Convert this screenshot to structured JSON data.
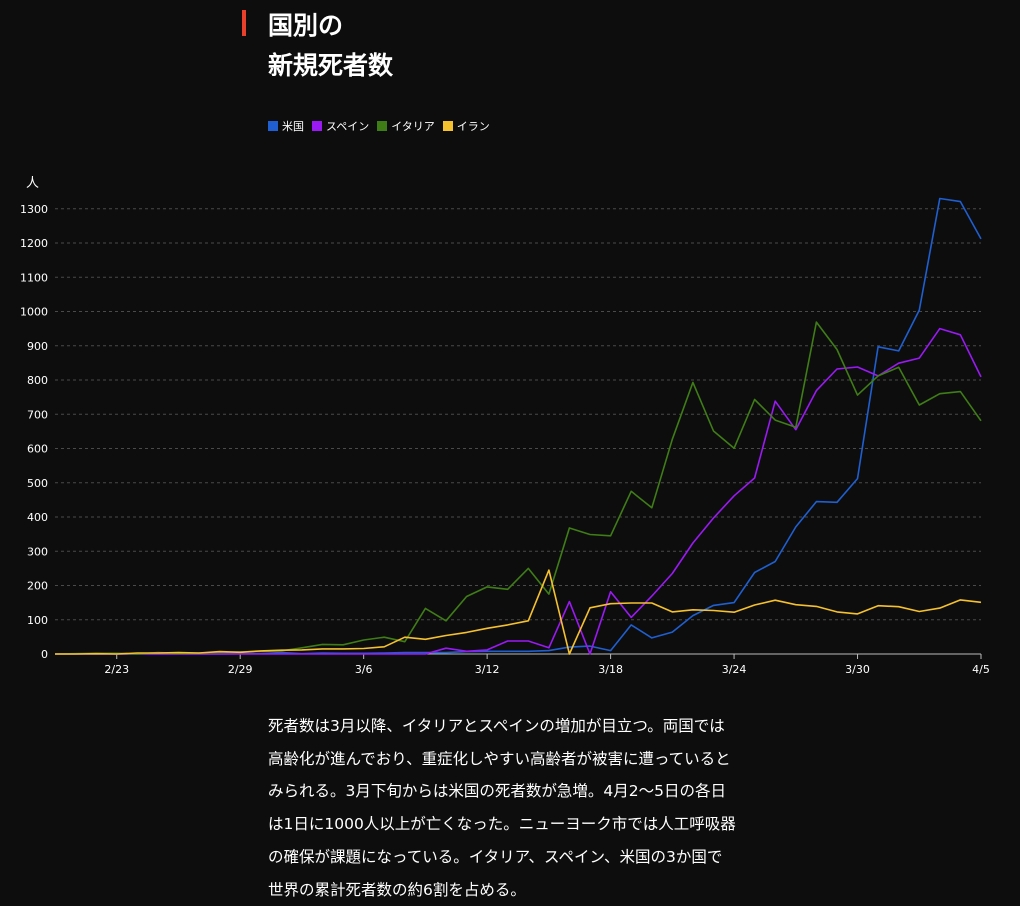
{
  "header": {
    "title_lines": [
      "国別の",
      "新規死者数"
    ]
  },
  "legend": [
    {
      "name": "米国",
      "color": "#1f5fd1"
    },
    {
      "name": "スペイン",
      "color": "#9b19f5"
    },
    {
      "name": "イタリア",
      "color": "#3f7d17"
    },
    {
      "name": "イラン",
      "color": "#f5c12e"
    }
  ],
  "chart_data": {
    "type": "line",
    "ylabel": "人",
    "ylim": [
      0,
      1350
    ],
    "yticks": [
      0,
      100,
      200,
      300,
      400,
      500,
      600,
      700,
      800,
      900,
      1000,
      1100,
      1200,
      1300
    ],
    "x_tick_labels": [
      "2/23",
      "2/29",
      "3/6",
      "3/12",
      "3/18",
      "3/24",
      "3/30",
      "4/5"
    ],
    "x_tick_indices": [
      3,
      9,
      15,
      21,
      27,
      33,
      39,
      45
    ],
    "grid": true,
    "x": [
      "2/20",
      "2/21",
      "2/22",
      "2/23",
      "2/24",
      "2/25",
      "2/26",
      "2/27",
      "2/28",
      "2/29",
      "3/1",
      "3/2",
      "3/3",
      "3/4",
      "3/5",
      "3/6",
      "3/7",
      "3/8",
      "3/9",
      "3/10",
      "3/11",
      "3/12",
      "3/13",
      "3/14",
      "3/15",
      "3/16",
      "3/17",
      "3/18",
      "3/19",
      "3/20",
      "3/21",
      "3/22",
      "3/23",
      "3/24",
      "3/25",
      "3/26",
      "3/27",
      "3/28",
      "3/29",
      "3/30",
      "3/31",
      "4/1",
      "4/2",
      "4/3",
      "4/4",
      "4/5"
    ],
    "series": [
      {
        "name": "米国",
        "color": "#1f5fd1",
        "values": [
          0,
          0,
          0,
          0,
          0,
          0,
          0,
          0,
          0,
          1,
          1,
          4,
          1,
          3,
          2,
          2,
          3,
          4,
          4,
          4,
          7,
          8,
          8,
          8,
          10,
          20,
          23,
          10,
          85,
          47,
          64,
          112,
          142,
          150,
          238,
          270,
          371,
          445,
          443,
          512,
          897,
          885,
          1004,
          1330,
          1321,
          1212
        ]
      },
      {
        "name": "スペイン",
        "color": "#9b19f5",
        "values": [
          0,
          0,
          0,
          0,
          0,
          0,
          0,
          0,
          0,
          0,
          0,
          0,
          0,
          0,
          0,
          0,
          0,
          0,
          0,
          17,
          8,
          12,
          38,
          38,
          18,
          153,
          0,
          182,
          107,
          169,
          235,
          324,
          397,
          462,
          514,
          738,
          655,
          769,
          832,
          838,
          812,
          849,
          864,
          950,
          932,
          809
        ]
      },
      {
        "name": "イタリア",
        "color": "#3f7d17",
        "values": [
          0,
          1,
          2,
          2,
          0,
          4,
          2,
          3,
          5,
          6,
          8,
          9,
          18,
          28,
          27,
          41,
          49,
          36,
          133,
          97,
          168,
          196,
          189,
          250,
          175,
          368,
          349,
          345,
          475,
          427,
          627,
          793,
          651,
          601,
          743,
          683,
          662,
          969,
          889,
          756,
          812,
          837,
          727,
          760,
          766,
          681
        ]
      },
      {
        "name": "イラン",
        "color": "#f5c12e",
        "values": [
          0,
          0,
          1,
          0,
          3,
          3,
          4,
          3,
          7,
          5,
          9,
          11,
          12,
          15,
          15,
          16,
          21,
          49,
          43,
          54,
          63,
          75,
          85,
          97,
          245,
          0,
          135,
          147,
          149,
          149,
          123,
          129,
          127,
          122,
          143,
          157,
          144,
          139,
          123,
          117,
          141,
          138,
          124,
          134,
          158,
          151
        ]
      }
    ]
  },
  "caption": {
    "lines": [
      "死者数は3月以降、イタリアとスペインの増加が目立つ。両国では",
      "高齢化が進んでおり、重症化しやすい高齢者が被害に遭っていると",
      "みられる。3月下旬からは米国の死者数が急増。4月2～5日の各日",
      "は1日に1000人以上が亡くなった。ニューヨーク市では人工呼吸器",
      "の確保が課題になっている。イタリア、スペイン、米国の3か国で",
      "世界の累計死者数の約6割を占める。"
    ]
  }
}
